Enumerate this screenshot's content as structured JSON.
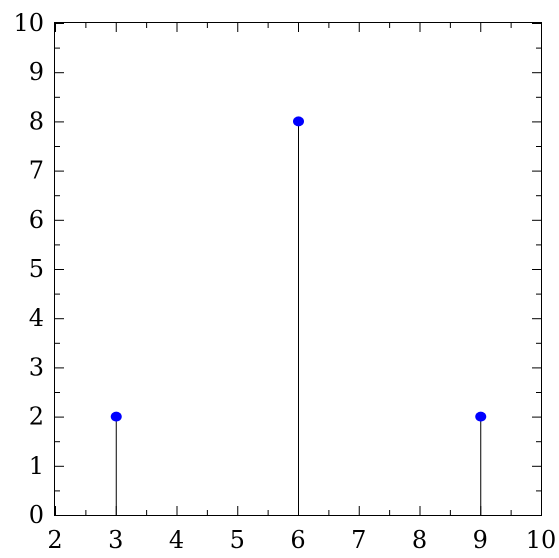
{
  "chart_data": {
    "type": "scatter",
    "style": "stem",
    "x": [
      3,
      6,
      9
    ],
    "y": [
      2,
      8,
      2
    ],
    "xlim": [
      2,
      10
    ],
    "ylim": [
      0,
      10
    ],
    "x_ticks": [
      2,
      3,
      4,
      5,
      6,
      7,
      8,
      9,
      10
    ],
    "y_ticks": [
      0,
      1,
      2,
      3,
      4,
      5,
      6,
      7,
      8,
      9,
      10
    ],
    "x_minor_step": 0.5,
    "y_minor_step": 0.5,
    "grid": false,
    "marker_color": "#0000ff",
    "stem_color": "#000000",
    "title": "",
    "xlabel": "",
    "ylabel": ""
  }
}
